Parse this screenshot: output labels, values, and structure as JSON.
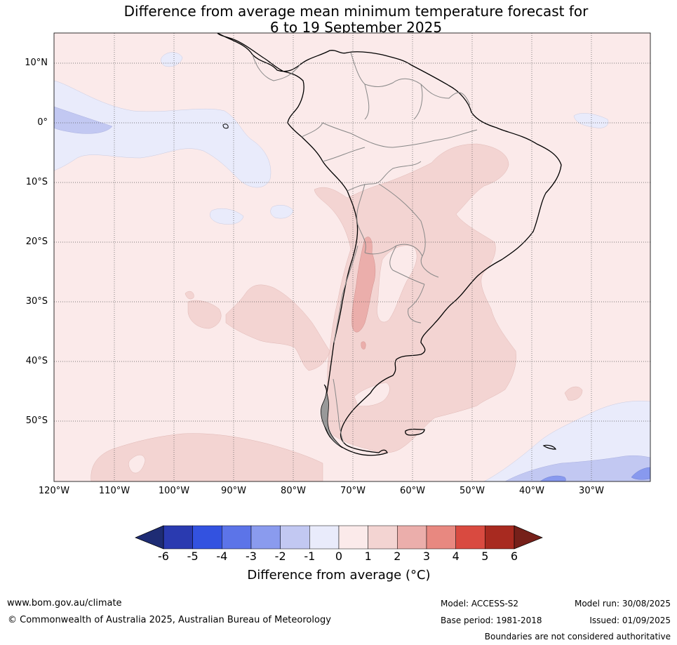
{
  "title": {
    "line1": "Difference from average mean minimum temperature forecast for",
    "line2": "6 to 19 September 2025"
  },
  "map": {
    "latitude_labels": [
      "10°N",
      "0°",
      "10°S",
      "20°S",
      "30°S",
      "40°S",
      "50°S"
    ],
    "longitude_labels": [
      "120°W",
      "110°W",
      "100°W",
      "90°W",
      "80°W",
      "70°W",
      "60°W",
      "50°W",
      "40°W",
      "30°W"
    ],
    "background_anomaly_class": "0 to 1",
    "colors": {
      "ocean_background": "#fbeaea",
      "band_0_1": "#fbeaea",
      "band_1_2": "#f3d4d2",
      "band_2_3": "#ebaeab",
      "band_m1_0": "#e9ebfb",
      "band_m2_m1": "#c2c8f2",
      "band_m3_m2": "#8899ee",
      "coast": "#000000",
      "borders": "#888888"
    }
  },
  "colorbar": {
    "ticks": [
      "-6",
      "-5",
      "-4",
      "-3",
      "-2",
      "-1",
      "0",
      "1",
      "2",
      "3",
      "4",
      "5",
      "6"
    ],
    "colors": [
      "#2a3ab0",
      "#3352e0",
      "#5c74e8",
      "#8a9bee",
      "#c2c8f2",
      "#e9ebfb",
      "#fbeaea",
      "#f3d4d2",
      "#ebaeab",
      "#e88880",
      "#d94a40",
      "#a82a20"
    ],
    "under_color": "#1e2c74",
    "over_color": "#76201a",
    "label": "Difference from average (°C)"
  },
  "footer": {
    "url": "www.bom.gov.au/climate",
    "copyright": "© Commonwealth of Australia 2025, Australian Bureau of Meteorology",
    "model": "Model: ACCESS-S2",
    "base_period": "Base period: 1981-2018",
    "model_run": "Model run: 30/08/2025",
    "issued": "Issued: 01/09/2025",
    "disclaimer": "Boundaries are not considered authoritative"
  }
}
